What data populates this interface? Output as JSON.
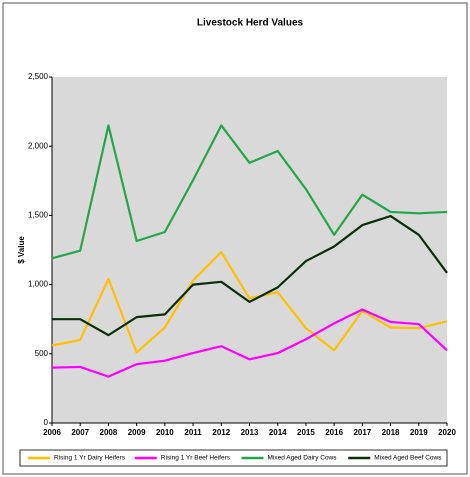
{
  "chart_data": {
    "type": "line",
    "title": "Livestock Herd Values",
    "y_label": "$ Value",
    "categories": [
      "2006",
      "2007",
      "2008",
      "2009",
      "2010",
      "2011",
      "2012",
      "2013",
      "2014",
      "2015",
      "2016",
      "2017",
      "2018",
      "2019",
      "2020"
    ],
    "series": [
      {
        "name": "Rising 1 Yr Dairy Heifers",
        "color": "#ffc000",
        "values": [
          560,
          600,
          1040,
          510,
          690,
          1030,
          1235,
          900,
          945,
          685,
          525,
          810,
          690,
          685,
          735
        ]
      },
      {
        "name": "Rising 1 Yr Beef Heifers",
        "color": "#ff00ff",
        "values": [
          400,
          405,
          335,
          425,
          450,
          505,
          555,
          460,
          505,
          605,
          720,
          820,
          730,
          715,
          525
        ]
      },
      {
        "name": "Mixed Aged Dairy Cows",
        "color": "#22a64a",
        "values": [
          1190,
          1245,
          2150,
          1315,
          1380,
          1755,
          2150,
          1880,
          1965,
          1690,
          1360,
          1650,
          1525,
          1515,
          1525
        ]
      },
      {
        "name": "Mixed Aged Beef Cows",
        "color": "#0b2e0b",
        "values": [
          750,
          750,
          635,
          765,
          785,
          1000,
          1020,
          875,
          980,
          1170,
          1275,
          1430,
          1495,
          1360,
          1085
        ]
      }
    ],
    "ylim": [
      0,
      2500
    ],
    "yticks": [
      0,
      500,
      {
        "value": 1000,
        "label": "1,000"
      },
      {
        "value": 1500,
        "label": "1,500"
      },
      {
        "value": 2000,
        "label": "2,000"
      },
      {
        "value": 2500,
        "label": "2,500"
      }
    ]
  }
}
